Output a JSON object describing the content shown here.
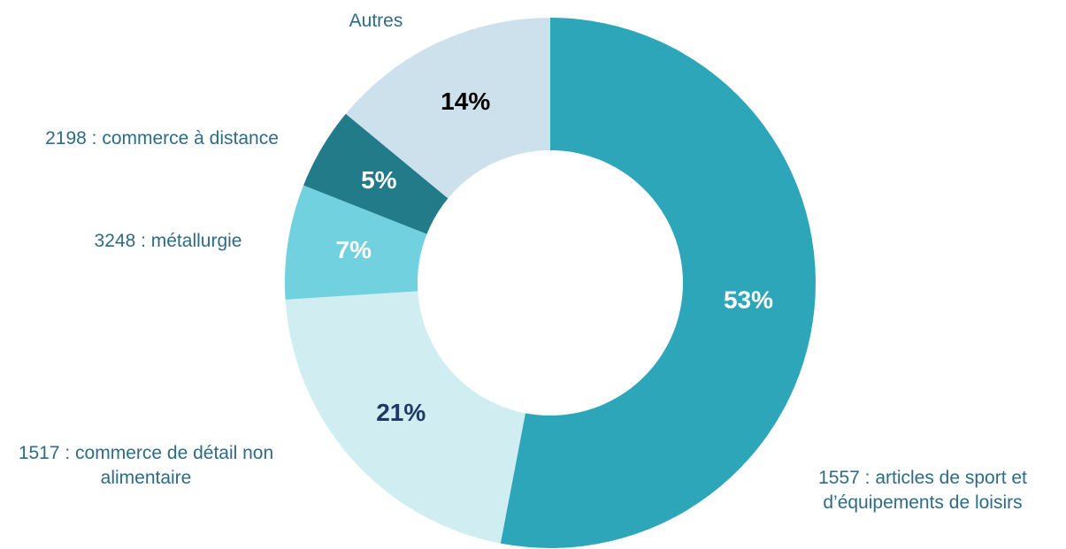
{
  "chart_data": {
    "type": "donut",
    "categories": [
      "1557 : articles de sport et d’équipements de loisirs",
      "1517 : commerce de détail non alimentaire",
      "3248 : métallurgie",
      "2198 : commerce à distance",
      "Autres"
    ],
    "values": [
      53,
      21,
      7,
      5,
      14
    ],
    "value_labels": [
      "53%",
      "21%",
      "7%",
      "5%",
      "14%"
    ],
    "colors": [
      "#2ca6b8",
      "#d0eef2",
      "#72d1df",
      "#217b88",
      "#cce1ec"
    ],
    "label_colors": [
      "#ffffff",
      "#1f3864",
      "#ffffff",
      "#ffffff",
      "#000000"
    ]
  }
}
